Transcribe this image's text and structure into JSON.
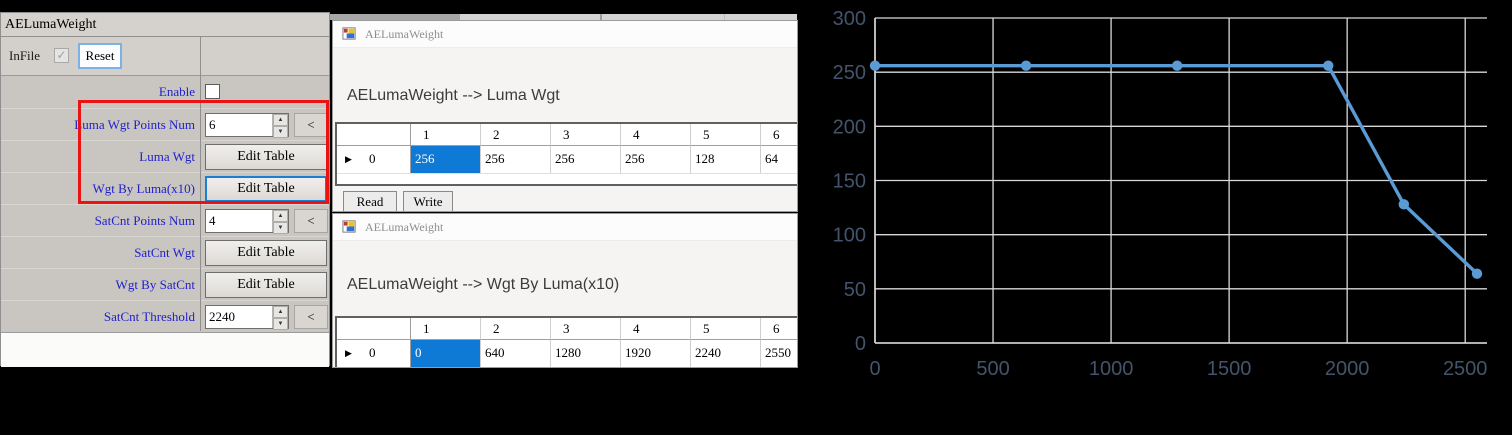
{
  "panel": {
    "title": "AELumaWeight",
    "infile_label": "InFile",
    "infile_checked": true,
    "reset_label": "Reset",
    "rows": [
      {
        "label": "Enable",
        "control": "checkbox",
        "checked": false
      },
      {
        "label": "Luma Wgt Points Num",
        "control": "spin",
        "value": "6"
      },
      {
        "label": "Luma Wgt",
        "control": "button",
        "button_label": "Edit Table"
      },
      {
        "label": "Wgt By Luma(x10)",
        "control": "button",
        "button_label": "Edit Table",
        "focused": true
      },
      {
        "label": "SatCnt Points Num",
        "control": "spin",
        "value": "4"
      },
      {
        "label": "SatCnt Wgt",
        "control": "button",
        "button_label": "Edit Table"
      },
      {
        "label": "Wgt By SatCnt",
        "control": "button",
        "button_label": "Edit Table"
      },
      {
        "label": "SatCnt Threshold",
        "control": "spin",
        "value": "2240"
      }
    ],
    "highlight_box_color": "#ea1212"
  },
  "glyphs": {
    "spin_up": "▲",
    "spin_down": "▼",
    "back_arrow": "<",
    "row_marker": "▶",
    "check_mark": "✓"
  },
  "dialogs": [
    {
      "title": "AELumaWeight",
      "label": "AELumaWeight --> Luma Wgt",
      "columns": [
        "1",
        "2",
        "3",
        "4",
        "5",
        "6"
      ],
      "row_header": "0",
      "values": [
        "256",
        "256",
        "256",
        "256",
        "128",
        "64"
      ],
      "selected_col": 0,
      "buttons": [
        "Read",
        "Write"
      ]
    },
    {
      "title": "AELumaWeight",
      "label": "AELumaWeight --> Wgt By Luma(x10)",
      "columns": [
        "1",
        "2",
        "3",
        "4",
        "5",
        "6"
      ],
      "row_header": "0",
      "values": [
        "0",
        "640",
        "1280",
        "1920",
        "2240",
        "2550"
      ],
      "selected_col": 0,
      "buttons": []
    }
  ],
  "colors": {
    "selected_cell": "#0f7ad6",
    "label_blue": "#2020cc",
    "focus_border": "#1a7fd4"
  },
  "chart_data": {
    "type": "line",
    "title": "",
    "xlabel": "",
    "ylabel": "",
    "x": [
      0,
      640,
      1280,
      1920,
      2240,
      2550
    ],
    "y": [
      256,
      256,
      256,
      256,
      128,
      64
    ],
    "xlim": [
      0,
      2550
    ],
    "ylim": [
      0,
      300
    ],
    "xticks": [
      0,
      500,
      1000,
      1500,
      2000,
      2500
    ],
    "yticks": [
      0,
      50,
      100,
      150,
      200,
      250,
      300
    ],
    "grid": true,
    "legend_position": "none",
    "line_color": "#5B9BD5",
    "grid_color": "#D9D9D9",
    "tick_color": "#44546A",
    "markers": true
  }
}
